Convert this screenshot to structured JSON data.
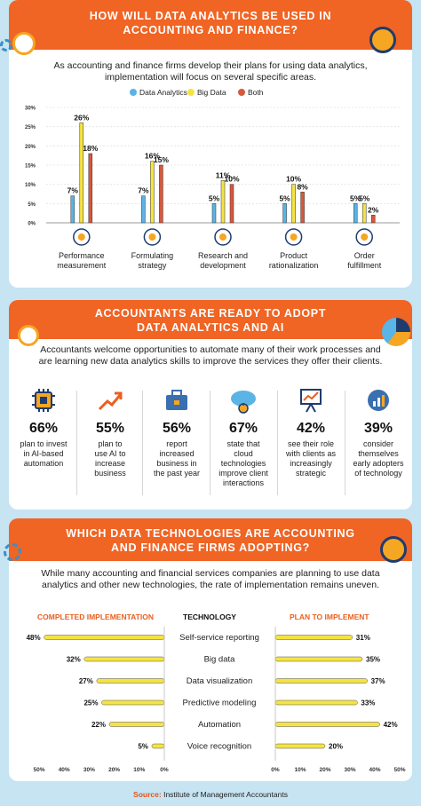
{
  "section1": {
    "title_line1": "HOW WILL DATA ANALYTICS BE USED IN",
    "title_line2": "ACCOUNTING AND FINANCE?",
    "intro_line1": "As accounting and finance firms develop their plans for using data analytics,",
    "intro_line2": "implementation will focus on several specific areas."
  },
  "section2": {
    "title_line1": "ACCOUNTANTS ARE READY TO ADOPT",
    "title_line2": "DATA ANALYTICS AND AI",
    "intro_line1": "Accountants welcome opportunities to automate many of their work processes and",
    "intro_line2": "are learning new data analytics skills to improve the services they offer their clients.",
    "stats": [
      {
        "pct": "66%",
        "l1": "plan to invest",
        "l2": "in AI-based",
        "l3": "automation",
        "l4": "",
        "icon": "chip-icon"
      },
      {
        "pct": "55%",
        "l1": "plan to",
        "l2": "use AI to",
        "l3": "increase",
        "l4": "business",
        "icon": "trend-up-icon"
      },
      {
        "pct": "56%",
        "l1": "report",
        "l2": "increased",
        "l3": "business in",
        "l4": "the past year",
        "icon": "briefcase-icon"
      },
      {
        "pct": "67%",
        "l1": "state that",
        "l2": "cloud",
        "l3": "technologies",
        "l4": "improve client",
        "l5": "interactions",
        "icon": "cloud-icon"
      },
      {
        "pct": "42%",
        "l1": "see their role",
        "l2": "with clients as",
        "l3": "increasingly",
        "l4": "strategic",
        "icon": "presentation-icon"
      },
      {
        "pct": "39%",
        "l1": "consider",
        "l2": "themselves",
        "l3": "early adopters",
        "l4": "of technology",
        "icon": "growth-circle-icon"
      }
    ]
  },
  "section3": {
    "title_line1": "WHICH DATA TECHNOLOGIES ARE ACCOUNTING",
    "title_line2": "AND FINANCE FIRMS ADOPTING?",
    "intro_line1": "While many accounting and financial services companies are planning to use data",
    "intro_line2": "analytics and other new technologies, the rate of implementation remains uneven.",
    "left_header": "COMPLETED IMPLEMENTATION",
    "center_header": "TECHNOLOGY",
    "right_header": "PLAN TO IMPLEMENT"
  },
  "source": {
    "label": "Source:",
    "text": "Institute of Management Accountants"
  },
  "colors": {
    "orange": "#f06424",
    "data_analytics": "#5ab4e5",
    "big_data": "#f5e342",
    "both": "#d9573b",
    "background": "#c6e4f1",
    "header_orange": "#e8601f"
  },
  "chart_data": [
    {
      "type": "bar",
      "categories": [
        "Performance measurement",
        "Formulating strategy",
        "Research and development",
        "Product rationalization",
        "Order fulfillment"
      ],
      "series": [
        {
          "name": "Data Analytics",
          "values": [
            7,
            7,
            5,
            5,
            5
          ]
        },
        {
          "name": "Big Data",
          "values": [
            26,
            16,
            11,
            10,
            5
          ]
        },
        {
          "name": "Both",
          "values": [
            18,
            15,
            10,
            8,
            2
          ]
        }
      ],
      "ylim": [
        0,
        30
      ],
      "yticks": [
        "0%",
        "5%",
        "10%",
        "15%",
        "20%",
        "25%",
        "30%"
      ],
      "value_labels": [
        [
          "7%",
          "26%",
          "18%"
        ],
        [
          "7%",
          "16%",
          "15%"
        ],
        [
          "5%",
          "11%",
          "10%"
        ],
        [
          "5%",
          "10%",
          "8%"
        ],
        [
          "5%",
          "5%",
          "2%"
        ]
      ],
      "category_lines": [
        [
          "Performance",
          "measurement"
        ],
        [
          "Formulating",
          "strategy"
        ],
        [
          "Research and",
          "development"
        ],
        [
          "Product",
          "rationalization"
        ],
        [
          "Order",
          "fulfillment"
        ]
      ],
      "legend_position": "top"
    },
    {
      "type": "bar",
      "orientation": "horizontal",
      "categories": [
        "Self-service reporting",
        "Big data",
        "Data visualization",
        "Predictive modeling",
        "Automation",
        "Voice recognition"
      ],
      "series": [
        {
          "name": "COMPLETED IMPLEMENTATION",
          "values": [
            48,
            32,
            27,
            25,
            22,
            5
          ]
        },
        {
          "name": "PLAN TO IMPLEMENT",
          "values": [
            31,
            35,
            37,
            33,
            42,
            20
          ]
        }
      ],
      "left_axis_ticks": [
        "50%",
        "40%",
        "30%",
        "20%",
        "10%",
        "0%"
      ],
      "right_axis_ticks": [
        "0%",
        "10%",
        "20%",
        "30%",
        "40%",
        "50%"
      ],
      "xlim": [
        0,
        50
      ]
    }
  ]
}
